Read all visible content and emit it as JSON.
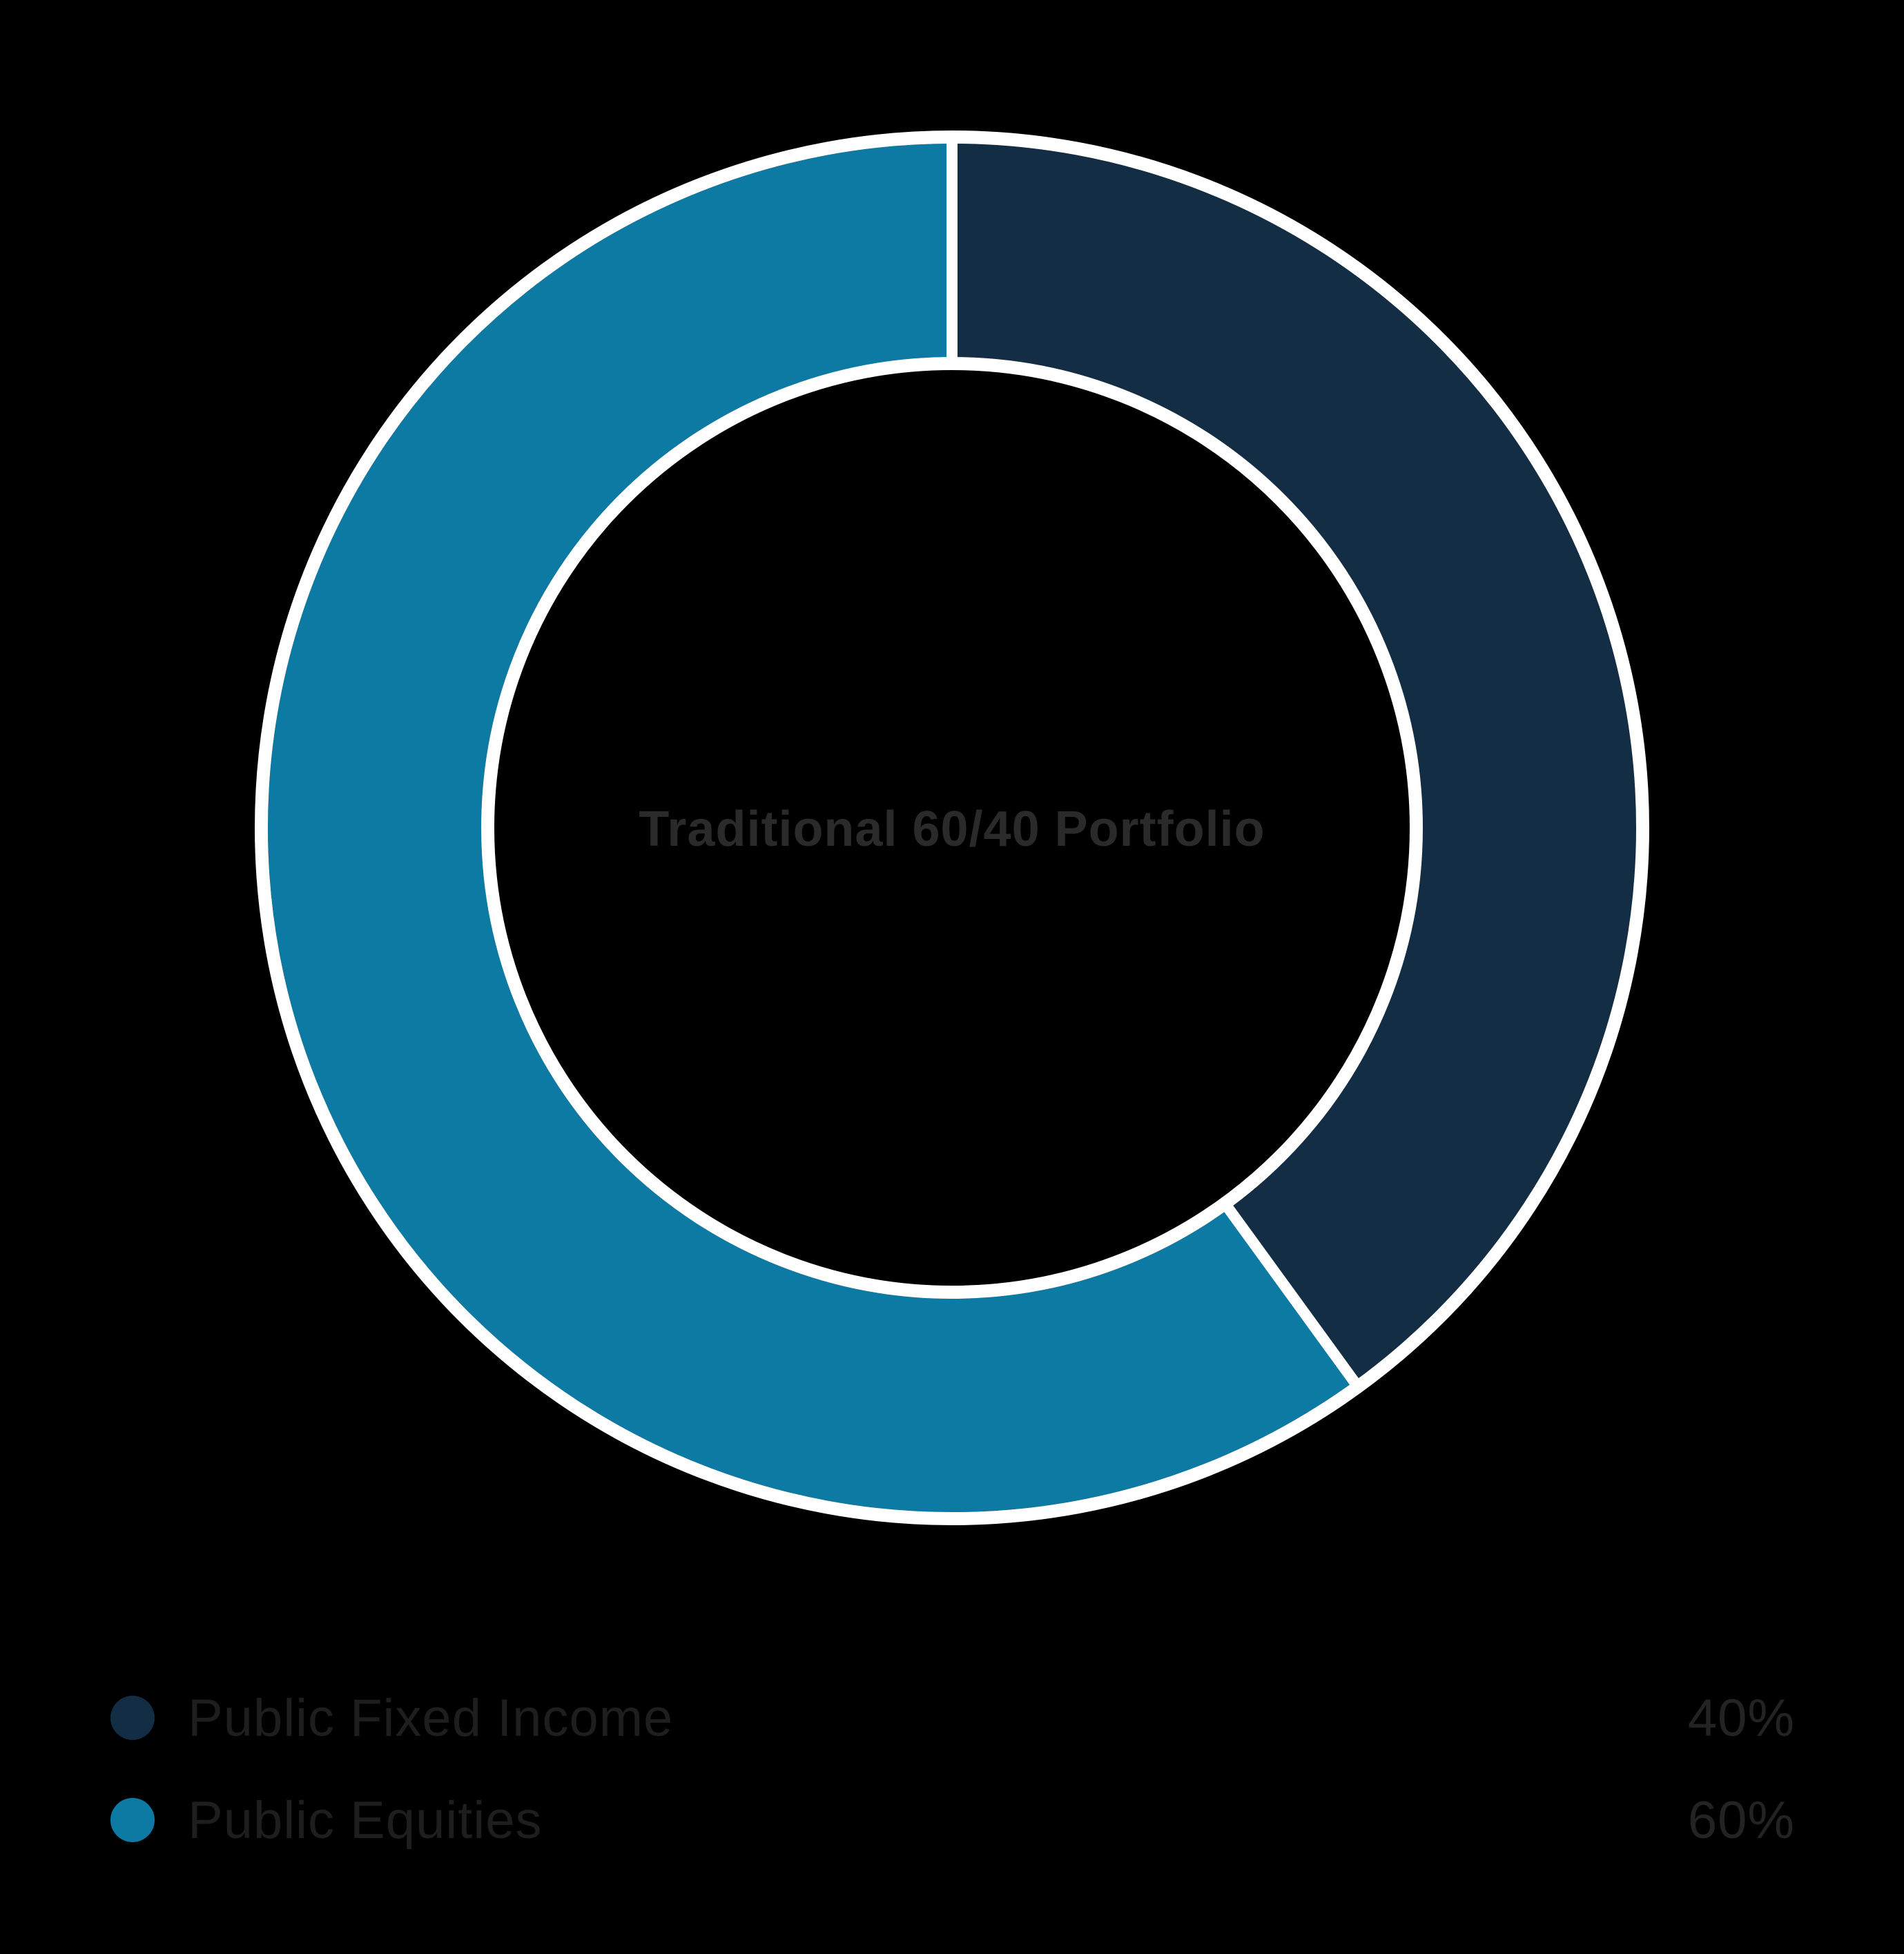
{
  "chart_data": {
    "type": "pie",
    "subtype": "donut",
    "title": "Traditional 60/40 Portfolio",
    "center_label": "Traditional 60/40 Portfolio",
    "categories": [
      "Public Fixed Income",
      "Public Equities"
    ],
    "values": [
      40,
      60
    ],
    "value_labels": [
      "40%",
      "60%"
    ],
    "colors": [
      "#132d44",
      "#0d7aa3"
    ],
    "start_angle_deg": 0,
    "direction": "clockwise",
    "legend_position": "bottom-left",
    "ring": {
      "outline_color": "#ffffff",
      "background": "#000000"
    }
  },
  "legend": {
    "items": [
      {
        "label": "Public Fixed Income",
        "value": "40%",
        "color": "#132d44"
      },
      {
        "label": "Public Equities",
        "value": "60%",
        "color": "#0d7aa3"
      }
    ]
  },
  "text_colors": {
    "center_title": "#2a2a2a",
    "legend_label": "#1e1e1e",
    "legend_value": "#232323"
  }
}
